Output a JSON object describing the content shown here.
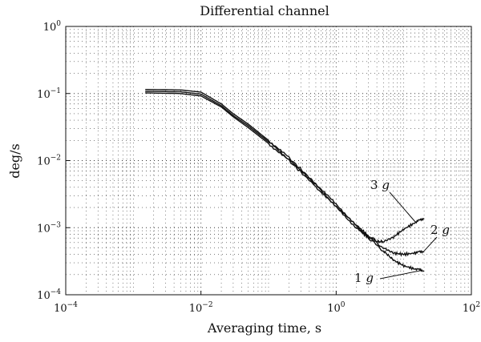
{
  "chart_data": {
    "type": "line",
    "title": "Differential channel",
    "xlabel": "Averaging time, s",
    "ylabel": "deg/s",
    "xscale": "log",
    "yscale": "log",
    "xlim": [
      0.0001,
      100
    ],
    "ylim": [
      0.0001,
      1
    ],
    "x_ticks": [
      {
        "base": "10",
        "exp": "−4"
      },
      {
        "base": "10",
        "exp": "−2"
      },
      {
        "base": "10",
        "exp": "0"
      },
      {
        "base": "10",
        "exp": "2"
      }
    ],
    "y_ticks": [
      {
        "base": "10",
        "exp": "−4"
      },
      {
        "base": "10",
        "exp": "−3"
      },
      {
        "base": "10",
        "exp": "−2"
      },
      {
        "base": "10",
        "exp": "−1"
      },
      {
        "base": "10",
        "exp": "0"
      }
    ],
    "grid": true,
    "series": [
      {
        "name": "3 g",
        "x": [
          0.0015,
          0.005,
          0.01,
          0.02,
          0.03,
          0.05,
          0.1,
          0.2,
          0.5,
          1,
          2,
          3,
          4,
          5,
          7,
          10,
          15,
          20
        ],
        "y": [
          0.115,
          0.113,
          0.105,
          0.07,
          0.05,
          0.035,
          0.02,
          0.011,
          0.0045,
          0.0022,
          0.0011,
          0.00075,
          0.00062,
          0.00062,
          0.00072,
          0.00095,
          0.0012,
          0.0014
        ]
      },
      {
        "name": "2 g",
        "x": [
          0.0015,
          0.005,
          0.01,
          0.02,
          0.03,
          0.05,
          0.1,
          0.2,
          0.5,
          1,
          2,
          3,
          5,
          7,
          10,
          15,
          20
        ],
        "y": [
          0.108,
          0.106,
          0.098,
          0.066,
          0.047,
          0.033,
          0.019,
          0.0105,
          0.0043,
          0.0021,
          0.00105,
          0.00072,
          0.0005,
          0.00042,
          0.0004,
          0.00042,
          0.00045
        ]
      },
      {
        "name": "1 g",
        "x": [
          0.0015,
          0.005,
          0.01,
          0.02,
          0.03,
          0.05,
          0.1,
          0.2,
          0.5,
          1,
          2,
          3,
          5,
          7,
          10,
          15,
          20
        ],
        "y": [
          0.102,
          0.1,
          0.092,
          0.063,
          0.045,
          0.031,
          0.018,
          0.01,
          0.0041,
          0.002,
          0.001,
          0.0007,
          0.00045,
          0.00033,
          0.00027,
          0.00024,
          0.00023
        ]
      }
    ],
    "annotations": [
      {
        "number": "3",
        "letter": "g",
        "series": "3 g"
      },
      {
        "number": "2",
        "letter": "g",
        "series": "2 g"
      },
      {
        "number": "1",
        "letter": "g",
        "series": "1 g"
      }
    ],
    "colors": {
      "line": "#111111",
      "grid": "#333333"
    }
  }
}
